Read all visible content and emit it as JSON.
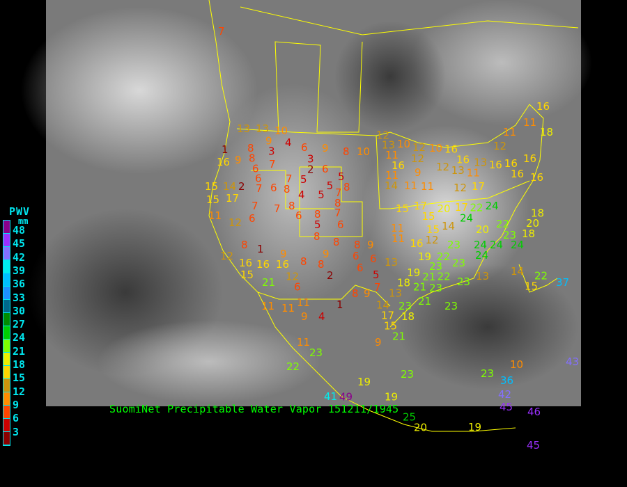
{
  "caption": "SuomiNet Precipitable Water Vapor 151211/1945",
  "legend": {
    "title": "PWV",
    "unit": "mm",
    "ticks": [
      "48",
      "45",
      "42",
      "39",
      "36",
      "33",
      "30",
      "27",
      "24",
      "21",
      "18",
      "15",
      "12",
      "9",
      "6",
      "3"
    ],
    "colors": [
      "#8b008b",
      "#9b30ff",
      "#8470ff",
      "#00eeee",
      "#00bfff",
      "#1e90ff",
      "#00688b",
      "#008b00",
      "#00cd00",
      "#7fff00",
      "#eeee00",
      "#ffd700",
      "#cd950c",
      "#ff8c00",
      "#ff4500",
      "#cd0000",
      "#8b0000"
    ]
  },
  "colors": {
    "background": "#000000",
    "borders": "#ffff00",
    "caption": "#00ff00",
    "legend_text": "#00e5ee"
  },
  "stations": [
    "7",
    "13",
    "13",
    "10",
    "9",
    "4",
    "6",
    "9",
    "8",
    "10",
    "12",
    "13",
    "10",
    "12",
    "10",
    "16",
    "16",
    "13",
    "12",
    "11",
    "11",
    "16",
    "18",
    "1",
    "8",
    "3",
    "16",
    "9",
    "8",
    "6",
    "6",
    "7",
    "7",
    "6",
    "5",
    "2",
    "3",
    "6",
    "5",
    "5",
    "5",
    "7",
    "8",
    "8",
    "15",
    "14",
    "2",
    "7",
    "8",
    "4",
    "8",
    "7",
    "7",
    "15",
    "17",
    "11",
    "12",
    "6",
    "6",
    "8",
    "7",
    "5",
    "6",
    "8",
    "8",
    "8",
    "9",
    "8",
    "1",
    "9",
    "9",
    "8",
    "8",
    "6",
    "6",
    "6",
    "12",
    "16",
    "16",
    "16",
    "15",
    "21",
    "12",
    "6",
    "2",
    "11",
    "16",
    "12",
    "9",
    "12",
    "13",
    "11",
    "16",
    "16",
    "16",
    "16",
    "16",
    "11",
    "11",
    "11",
    "12",
    "17",
    "14",
    "15",
    "17",
    "15",
    "20",
    "17",
    "22",
    "24",
    "24",
    "14",
    "15",
    "20",
    "22",
    "23",
    "18",
    "18",
    "20",
    "11",
    "11",
    "16",
    "12",
    "23",
    "24",
    "24",
    "24",
    "13",
    "19",
    "22",
    "23",
    "23",
    "24",
    "19",
    "21",
    "22",
    "23",
    "23",
    "13",
    "14",
    "22",
    "15",
    "37",
    "11",
    "11",
    "11",
    "9",
    "4",
    "1",
    "8",
    "9",
    "7",
    "5",
    "18",
    "21",
    "13",
    "14",
    "17",
    "18",
    "21",
    "23",
    "23",
    "15",
    "21",
    "9",
    "11",
    "23",
    "22",
    "19",
    "23",
    "23",
    "10",
    "36",
    "42",
    "43",
    "41",
    "49",
    "19",
    "25",
    "20",
    "19",
    "45",
    "46",
    "45"
  ]
}
